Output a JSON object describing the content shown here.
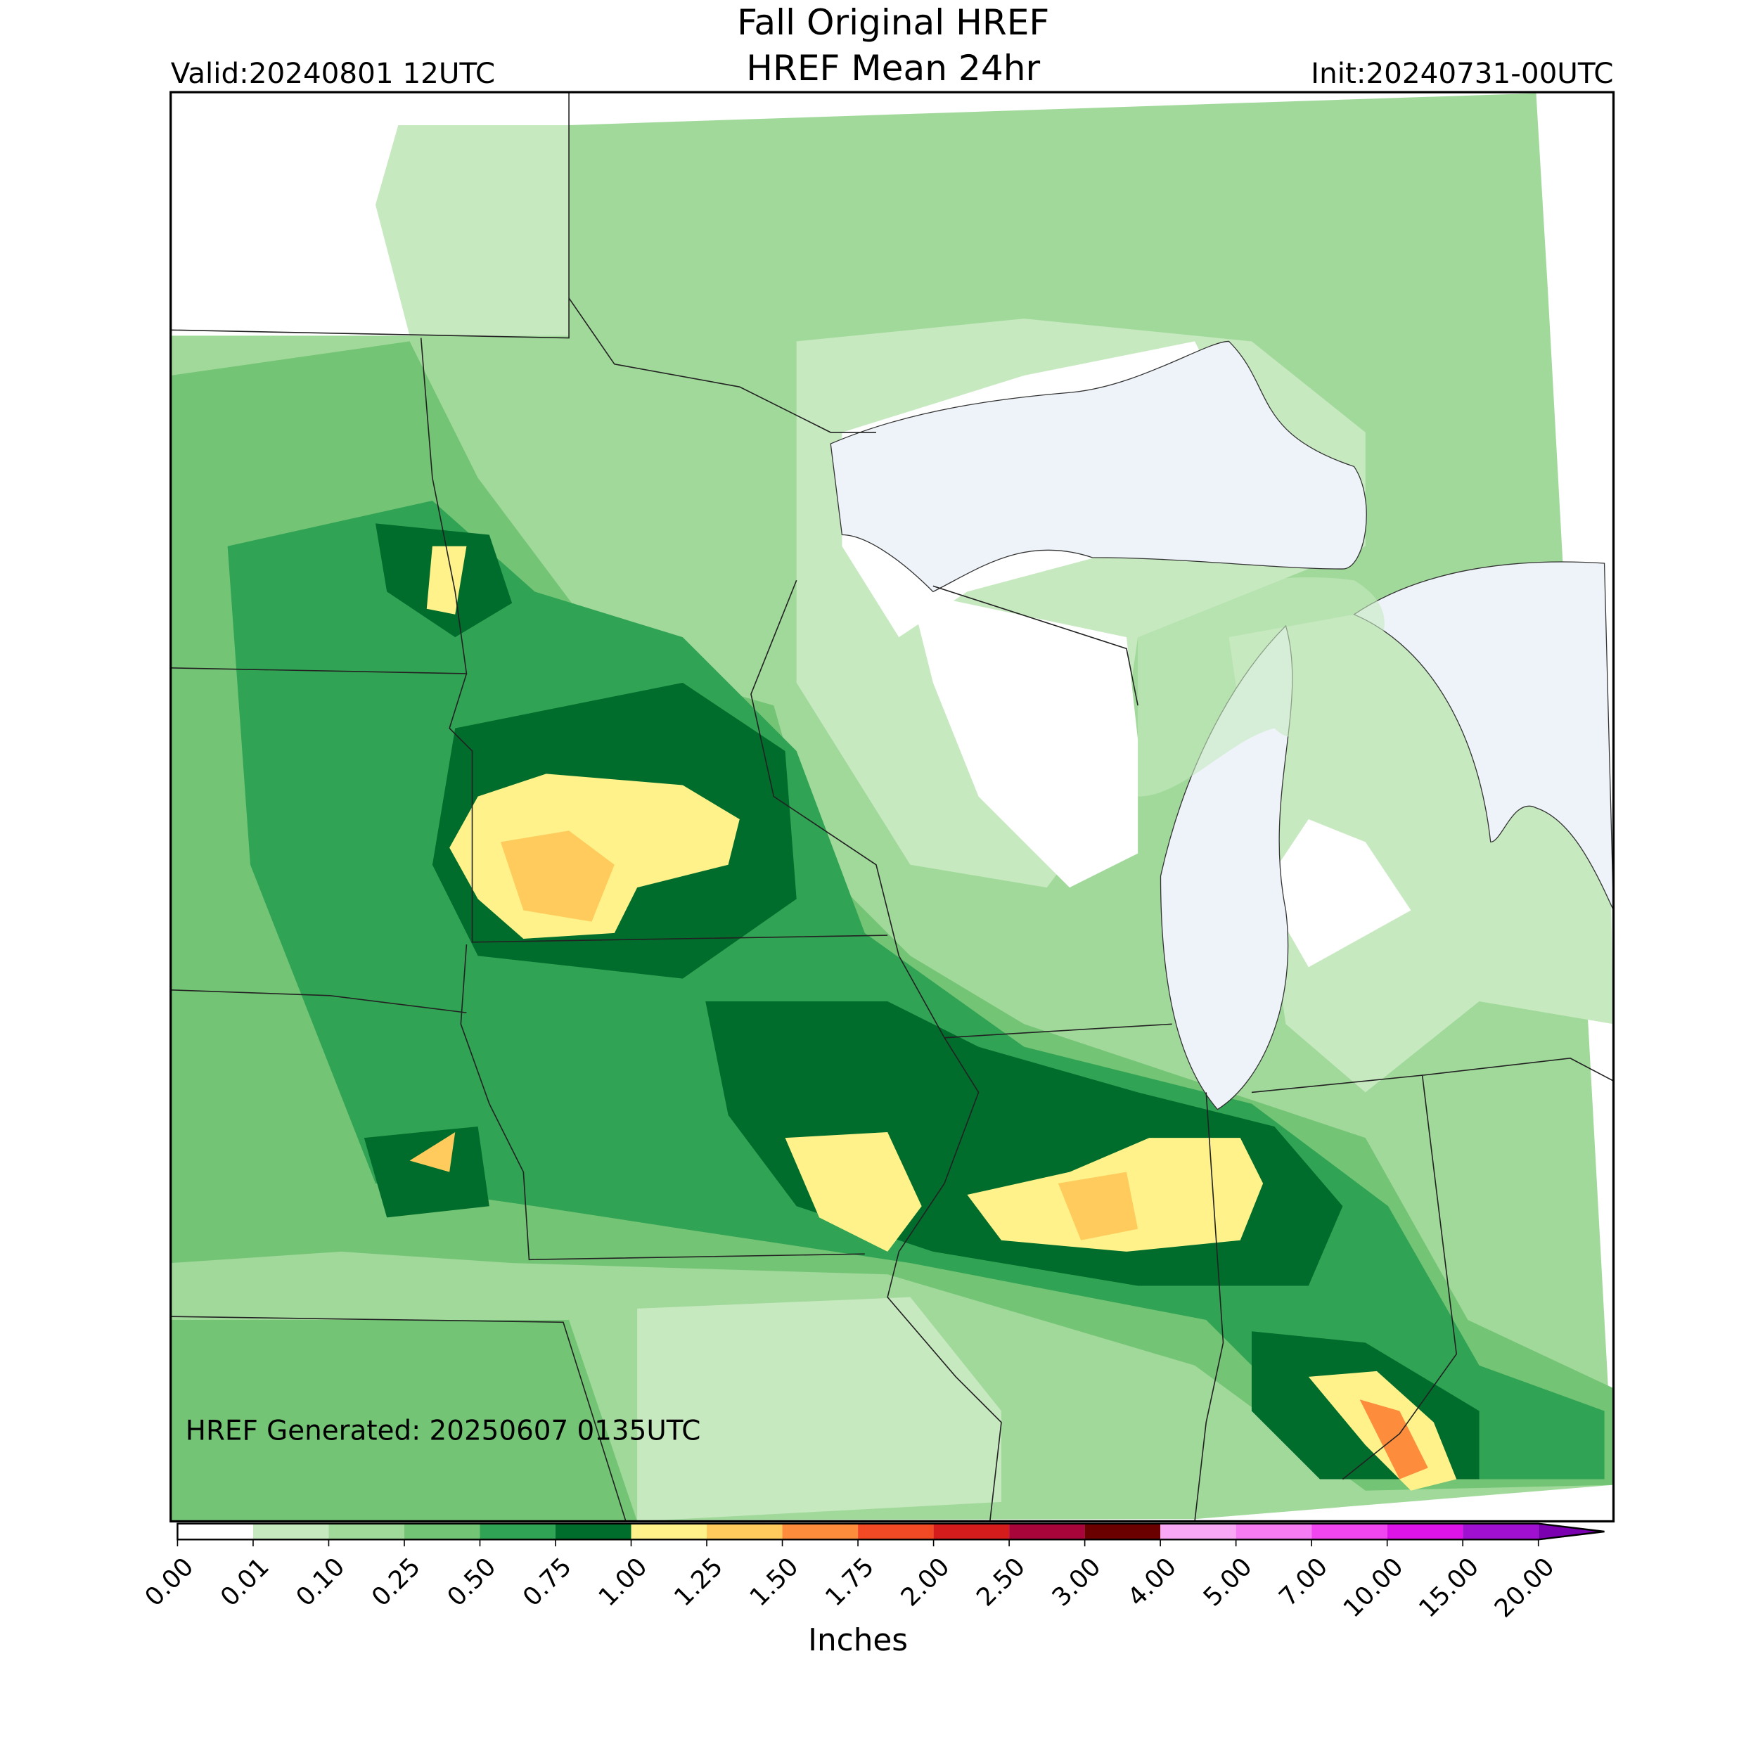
{
  "header": {
    "title": "Fall Original HREF",
    "subtitle": "HREF Mean 24hr",
    "valid": "Valid:20240801 12UTC",
    "init": "Init:20240731-00UTC"
  },
  "map": {
    "generated": "HREF Generated: 20250607 0135UTC"
  },
  "colorbar": {
    "label": "Inches",
    "ticks": [
      {
        "value": 0,
        "label": "0.00"
      },
      {
        "value": 0.01,
        "label": "0.01"
      },
      {
        "value": 0.1,
        "label": "0.10"
      },
      {
        "value": 0.25,
        "label": "0.25"
      },
      {
        "value": 0.5,
        "label": "0.50"
      },
      {
        "value": 0.75,
        "label": "0.75"
      },
      {
        "value": 1,
        "label": "1.00"
      },
      {
        "value": 1.25,
        "label": "1.25"
      },
      {
        "value": 1.5,
        "label": "1.50"
      },
      {
        "value": 1.75,
        "label": "1.75"
      },
      {
        "value": 2,
        "label": "2.00"
      },
      {
        "value": 2.5,
        "label": "2.50"
      },
      {
        "value": 3,
        "label": "3.00"
      },
      {
        "value": 4,
        "label": "4.00"
      },
      {
        "value": 5,
        "label": "5.00"
      },
      {
        "value": 7,
        "label": "7.00"
      },
      {
        "value": 10,
        "label": "10.00"
      },
      {
        "value": 15,
        "label": "15.00"
      },
      {
        "value": 20,
        "label": "20.00"
      }
    ],
    "colors": [
      "#ffffff",
      "#c7e9c0",
      "#a1d99b",
      "#74c476",
      "#31a354",
      "#006d2c",
      "#fff28a",
      "#fecb5c",
      "#fd8d3c",
      "#f34a26",
      "#d41c1c",
      "#a8053a",
      "#6a0000",
      "#f9a8f5",
      "#f57cf2",
      "#f046f0",
      "#dc14e8",
      "#a010d0"
    ],
    "over_color": "#7a00b0"
  }
}
